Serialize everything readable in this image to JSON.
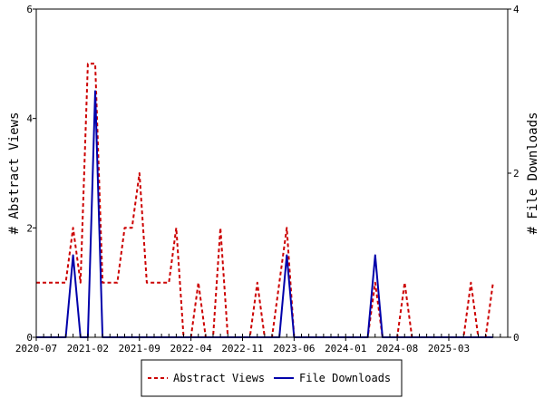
{
  "chart_data": {
    "type": "line",
    "xlabel": "",
    "ylabel": "# Abstract Views",
    "y2label": "# File Downloads",
    "ylim": [
      0,
      6
    ],
    "y2lim": [
      0,
      4
    ],
    "yticks": [
      "0",
      "2",
      "4",
      "6"
    ],
    "y2ticks": [
      "0",
      "2",
      "4"
    ],
    "xlim": [
      "2020-07",
      "2025-11"
    ],
    "xticks": [
      "2020-07",
      "2021-02",
      "2021-09",
      "2022-04",
      "2022-11",
      "2023-06",
      "2024-01",
      "2024-08",
      "2025-03"
    ],
    "grid": false,
    "legend": "bottom-center",
    "series": [
      {
        "name": "Abstract Views",
        "axis": "left",
        "color": "#cc0000",
        "style": "dashed",
        "points": [
          [
            "2020-07",
            1
          ],
          [
            "2020-08",
            1
          ],
          [
            "2020-09",
            1
          ],
          [
            "2020-10",
            1
          ],
          [
            "2020-11",
            1
          ],
          [
            "2020-12",
            2
          ],
          [
            "2021-01",
            1
          ],
          [
            "2021-02",
            5
          ],
          [
            "2021-03",
            5
          ],
          [
            "2021-04",
            1
          ],
          [
            "2021-05",
            1
          ],
          [
            "2021-06",
            1
          ],
          [
            "2021-07",
            2
          ],
          [
            "2021-08",
            2
          ],
          [
            "2021-09",
            3
          ],
          [
            "2021-10",
            1
          ],
          [
            "2021-11",
            1
          ],
          [
            "2021-12",
            1
          ],
          [
            "2022-01",
            1
          ],
          [
            "2022-02",
            2
          ],
          [
            "2022-03",
            0
          ],
          [
            "2022-04",
            0
          ],
          [
            "2022-05",
            1
          ],
          [
            "2022-06",
            0
          ],
          [
            "2022-07",
            0
          ],
          [
            "2022-08",
            2
          ],
          [
            "2022-09",
            0
          ],
          [
            "2022-10",
            0
          ],
          [
            "2022-11",
            0
          ],
          [
            "2022-12",
            0
          ],
          [
            "2023-01",
            1
          ],
          [
            "2023-02",
            0
          ],
          [
            "2023-03",
            0
          ],
          [
            "2023-04",
            1
          ],
          [
            "2023-05",
            2
          ],
          [
            "2023-06",
            0
          ],
          [
            "2023-07",
            0
          ],
          [
            "2023-08",
            0
          ],
          [
            "2023-09",
            0
          ],
          [
            "2023-10",
            0
          ],
          [
            "2023-11",
            0
          ],
          [
            "2023-12",
            0
          ],
          [
            "2024-01",
            0
          ],
          [
            "2024-02",
            0
          ],
          [
            "2024-03",
            0
          ],
          [
            "2024-04",
            0
          ],
          [
            "2024-05",
            1
          ],
          [
            "2024-06",
            0
          ],
          [
            "2024-07",
            0
          ],
          [
            "2024-08",
            0
          ],
          [
            "2024-09",
            1
          ],
          [
            "2024-10",
            0
          ],
          [
            "2024-11",
            0
          ],
          [
            "2024-12",
            0
          ],
          [
            "2025-01",
            0
          ],
          [
            "2025-02",
            0
          ],
          [
            "2025-03",
            0
          ],
          [
            "2025-04",
            0
          ],
          [
            "2025-05",
            0
          ],
          [
            "2025-06",
            1
          ],
          [
            "2025-07",
            0
          ],
          [
            "2025-08",
            0
          ],
          [
            "2025-09",
            1
          ]
        ]
      },
      {
        "name": "File Downloads",
        "axis": "right",
        "color": "#0000aa",
        "style": "solid",
        "points": [
          [
            "2020-07",
            0
          ],
          [
            "2020-08",
            0
          ],
          [
            "2020-09",
            0
          ],
          [
            "2020-10",
            0
          ],
          [
            "2020-11",
            0
          ],
          [
            "2020-12",
            1
          ],
          [
            "2021-01",
            0
          ],
          [
            "2021-02",
            0
          ],
          [
            "2021-03",
            3
          ],
          [
            "2021-04",
            0
          ],
          [
            "2021-05",
            0
          ],
          [
            "2021-06",
            0
          ],
          [
            "2021-07",
            0
          ],
          [
            "2021-08",
            0
          ],
          [
            "2021-09",
            0
          ],
          [
            "2021-10",
            0
          ],
          [
            "2021-11",
            0
          ],
          [
            "2021-12",
            0
          ],
          [
            "2022-01",
            0
          ],
          [
            "2022-02",
            0
          ],
          [
            "2022-03",
            0
          ],
          [
            "2022-04",
            0
          ],
          [
            "2022-05",
            0
          ],
          [
            "2022-06",
            0
          ],
          [
            "2022-07",
            0
          ],
          [
            "2022-08",
            0
          ],
          [
            "2022-09",
            0
          ],
          [
            "2022-10",
            0
          ],
          [
            "2022-11",
            0
          ],
          [
            "2022-12",
            0
          ],
          [
            "2023-01",
            0
          ],
          [
            "2023-02",
            0
          ],
          [
            "2023-03",
            0
          ],
          [
            "2023-04",
            0
          ],
          [
            "2023-05",
            1
          ],
          [
            "2023-06",
            0
          ],
          [
            "2023-07",
            0
          ],
          [
            "2023-08",
            0
          ],
          [
            "2023-09",
            0
          ],
          [
            "2023-10",
            0
          ],
          [
            "2023-11",
            0
          ],
          [
            "2023-12",
            0
          ],
          [
            "2024-01",
            0
          ],
          [
            "2024-02",
            0
          ],
          [
            "2024-03",
            0
          ],
          [
            "2024-04",
            0
          ],
          [
            "2024-05",
            1
          ],
          [
            "2024-06",
            0
          ],
          [
            "2024-07",
            0
          ],
          [
            "2024-08",
            0
          ],
          [
            "2024-09",
            0
          ],
          [
            "2024-10",
            0
          ],
          [
            "2024-11",
            0
          ],
          [
            "2024-12",
            0
          ],
          [
            "2025-01",
            0
          ],
          [
            "2025-02",
            0
          ],
          [
            "2025-03",
            0
          ],
          [
            "2025-04",
            0
          ],
          [
            "2025-05",
            0
          ],
          [
            "2025-06",
            0
          ],
          [
            "2025-07",
            0
          ],
          [
            "2025-08",
            0
          ],
          [
            "2025-09",
            0
          ]
        ]
      }
    ]
  }
}
